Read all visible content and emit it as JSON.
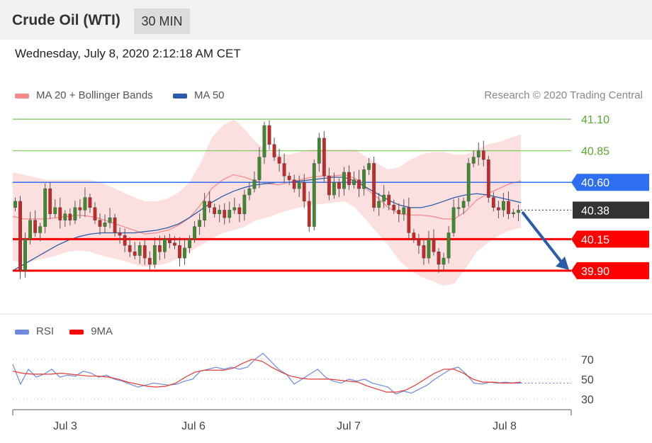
{
  "header": {
    "title": "Crude Oil (WTI)",
    "timeframe": "30 MIN"
  },
  "timestamp": "Wednesday, July 8, 2020 2:12:18 AM CET",
  "legend": {
    "ma20_bb": "MA 20 + Bollinger Bands",
    "ma50": "MA 50"
  },
  "credit": "Research © 2020 Trading Central",
  "rsi_legend": {
    "rsi": "RSI",
    "ma9": "9MA"
  },
  "colors": {
    "bollinger": "#f48c8c",
    "ma50": "#2a5caa",
    "support": "#ff0000",
    "resistance": "#7cc45a",
    "pivot": "#2e6ff2",
    "current": "#333333",
    "rsi": "#6d8ae0",
    "arrow": "#2a5caa"
  },
  "chart_data": [
    {
      "type": "candlestick",
      "x_ticks": [
        "Jul 3",
        "Jul 6",
        "Jul 7",
        "Jul 8"
      ],
      "ylim": [
        39.63,
        41.23
      ],
      "levels": [
        {
          "value": 41.1,
          "label": "41.10",
          "kind": "resistance"
        },
        {
          "value": 40.85,
          "label": "40.85",
          "kind": "resistance"
        },
        {
          "value": 40.6,
          "label": "40.60",
          "kind": "pivot"
        },
        {
          "value": 40.38,
          "label": "40.38",
          "kind": "current"
        },
        {
          "value": 40.15,
          "label": "40.15",
          "kind": "support"
        },
        {
          "value": 39.9,
          "label": "39.90",
          "kind": "support"
        }
      ],
      "close": [
        40.45,
        39.9,
        40.15,
        40.3,
        40.2,
        40.25,
        40.55,
        40.35,
        40.4,
        40.3,
        40.35,
        40.3,
        40.4,
        40.38,
        40.48,
        40.4,
        40.3,
        40.25,
        40.28,
        40.32,
        40.2,
        40.18,
        40.1,
        40.05,
        40.02,
        40.1,
        40.0,
        39.95,
        40.1,
        40.05,
        40.15,
        40.12,
        40.1,
        40.0,
        40.08,
        40.15,
        40.25,
        40.3,
        40.45,
        40.4,
        40.35,
        40.38,
        40.32,
        40.38,
        40.4,
        40.35,
        40.5,
        40.55,
        40.62,
        40.8,
        41.05,
        40.9,
        40.8,
        40.75,
        40.65,
        40.62,
        40.55,
        40.6,
        40.45,
        40.25,
        40.75,
        40.95,
        40.65,
        40.5,
        40.6,
        40.55,
        40.68,
        40.58,
        40.62,
        40.55,
        40.7,
        40.75,
        40.4,
        40.45,
        40.5,
        40.42,
        40.38,
        40.35,
        40.4,
        40.2,
        40.15,
        40.1,
        40.0,
        40.15,
        40.05,
        39.95,
        40.0,
        40.2,
        40.4,
        40.4,
        40.45,
        40.75,
        40.8,
        40.85,
        40.78,
        40.48,
        40.4,
        40.38,
        40.45,
        40.35,
        40.36,
        40.38
      ],
      "bollinger": {
        "upper": [
          40.68,
          40.66,
          40.64,
          40.62,
          40.62,
          40.62,
          40.62,
          40.62,
          40.6,
          40.56,
          40.52,
          40.48,
          40.45,
          40.45,
          40.47,
          40.52,
          40.6,
          40.75,
          40.95,
          41.05,
          41.1,
          41.02,
          40.92,
          40.85,
          40.82,
          40.82,
          40.84,
          40.86,
          40.86,
          40.86,
          40.86,
          40.86,
          40.8,
          40.75,
          40.7,
          40.72,
          40.78,
          40.82,
          40.84,
          40.84,
          40.82,
          40.82,
          40.86,
          40.9,
          40.92,
          40.95,
          40.98
        ],
        "lower": [
          39.98,
          39.96,
          39.98,
          40.0,
          40.02,
          40.05,
          40.06,
          40.05,
          40.02,
          40.0,
          39.98,
          39.95,
          39.93,
          39.94,
          39.96,
          40.0,
          40.05,
          40.1,
          40.15,
          40.2,
          40.22,
          40.25,
          40.3,
          40.32,
          40.35,
          40.38,
          40.4,
          40.42,
          40.43,
          40.44,
          40.45,
          40.4,
          40.3,
          40.2,
          40.1,
          39.98,
          39.9,
          39.85,
          39.82,
          39.78,
          39.8,
          39.92,
          40.05,
          40.12,
          40.18,
          40.22,
          40.24
        ],
        "middle": [
          40.33,
          40.31,
          40.31,
          40.31,
          40.32,
          40.33,
          40.34,
          40.33,
          40.31,
          40.28,
          40.25,
          40.22,
          40.19,
          40.2,
          40.22,
          40.26,
          40.32,
          40.42,
          40.55,
          40.62,
          40.66,
          40.64,
          40.61,
          40.59,
          40.58,
          40.6,
          40.62,
          40.64,
          40.65,
          40.65,
          40.66,
          40.63,
          40.55,
          40.48,
          40.4,
          40.35,
          40.34,
          40.34,
          40.33,
          40.31,
          40.31,
          40.37,
          40.46,
          40.51,
          40.55,
          40.59,
          40.61
        ]
      },
      "ma50": [
        39.9,
        39.95,
        40.0,
        40.05,
        40.1,
        40.14,
        40.17,
        40.19,
        40.2,
        40.2,
        40.2,
        40.2,
        40.21,
        40.22,
        40.24,
        40.27,
        40.32,
        40.38,
        40.44,
        40.49,
        40.53,
        40.56,
        40.58,
        40.59,
        40.6,
        40.6,
        40.61,
        40.62,
        40.63,
        40.64,
        40.64,
        40.61,
        40.56,
        40.51,
        40.46,
        40.42,
        40.4,
        40.4,
        40.42,
        40.45,
        40.48,
        40.5,
        40.51,
        40.5,
        40.48,
        40.46,
        40.44
      ]
    },
    {
      "type": "line",
      "name": "RSI",
      "yticks": [
        30,
        50,
        70
      ],
      "ylim": [
        25,
        82
      ],
      "rsi": [
        65,
        45,
        60,
        52,
        55,
        60,
        52,
        54,
        53,
        58,
        56,
        52,
        54,
        50,
        48,
        45,
        42,
        44,
        46,
        45,
        44,
        45,
        48,
        50,
        58,
        60,
        62,
        60,
        62,
        60,
        62,
        70,
        76,
        68,
        60,
        55,
        45,
        50,
        55,
        60,
        52,
        48,
        46,
        50,
        48,
        50,
        46,
        44,
        42,
        35,
        38,
        36,
        40,
        44,
        50,
        55,
        60,
        62,
        55,
        46,
        45,
        47,
        46,
        47,
        46,
        46
      ],
      "ma9": [
        58,
        56,
        55,
        55,
        55,
        56,
        55,
        54,
        53,
        53,
        52,
        50,
        47,
        45,
        43,
        42,
        43,
        46,
        52,
        57,
        59,
        59,
        59,
        61,
        66,
        70,
        68,
        62,
        57,
        53,
        51,
        50,
        50,
        50,
        49,
        48,
        47,
        43,
        40,
        37,
        37,
        39,
        44,
        50,
        56,
        60,
        60,
        56,
        50,
        47,
        47,
        46,
        46,
        47
      ]
    }
  ]
}
